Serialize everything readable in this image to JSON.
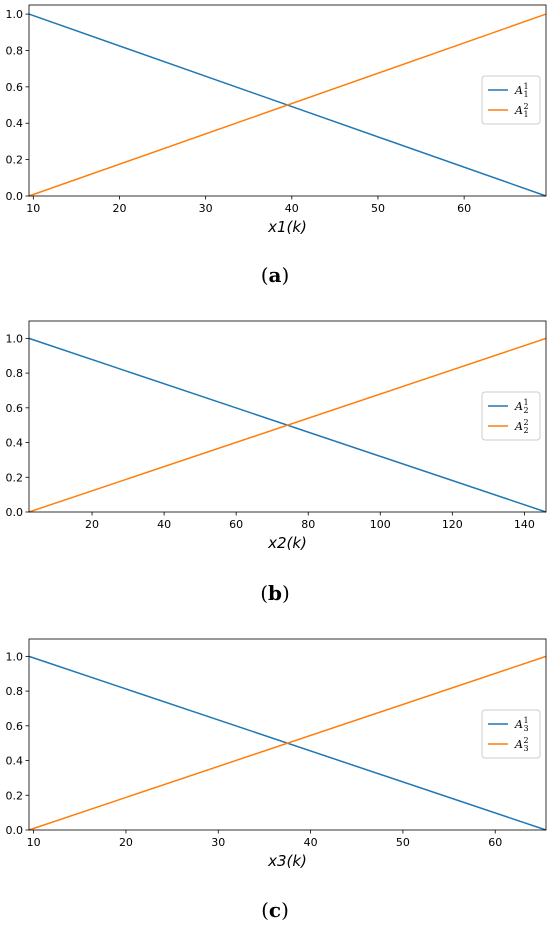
{
  "chart_data": [
    {
      "type": "line",
      "xlabel_main": "x1",
      "xlabel_arg": "k",
      "xlim": [
        9.5,
        69.5
      ],
      "ylim": [
        0.0,
        1.05
      ],
      "xticks": [
        10,
        20,
        30,
        40,
        50,
        60
      ],
      "yticks": [
        "0.0",
        "0.2",
        "0.4",
        "0.6",
        "0.8",
        "1.0"
      ],
      "series": [
        {
          "name": "A11",
          "label_base": "A",
          "label_sub": "1",
          "label_sup": "1",
          "color": "#1f77b4",
          "x": [
            9.5,
            69.5
          ],
          "y": [
            1.0,
            0.0
          ]
        },
        {
          "name": "A12",
          "label_base": "A",
          "label_sub": "1",
          "label_sup": "2",
          "color": "#ff7f0e",
          "x": [
            9.5,
            69.5
          ],
          "y": [
            0.0,
            1.0
          ]
        }
      ],
      "grid": false,
      "legend": "right",
      "caption_letter": "a"
    },
    {
      "type": "line",
      "xlabel_main": "x2",
      "xlabel_arg": "k",
      "xlim": [
        2.5,
        146
      ],
      "ylim": [
        0.0,
        1.1
      ],
      "xticks": [
        20,
        40,
        60,
        80,
        100,
        120,
        140
      ],
      "yticks": [
        "0.0",
        "0.2",
        "0.4",
        "0.6",
        "0.8",
        "1.0"
      ],
      "series": [
        {
          "name": "A21",
          "label_base": "A",
          "label_sub": "2",
          "label_sup": "1",
          "color": "#1f77b4",
          "x": [
            2.5,
            146
          ],
          "y": [
            1.0,
            0.0
          ]
        },
        {
          "name": "A22",
          "label_base": "A",
          "label_sub": "2",
          "label_sup": "2",
          "color": "#ff7f0e",
          "x": [
            2.5,
            146
          ],
          "y": [
            0.0,
            1.0
          ]
        }
      ],
      "grid": false,
      "legend": "right",
      "caption_letter": "b"
    },
    {
      "type": "line",
      "xlabel_main": "x3",
      "xlabel_arg": "k",
      "xlim": [
        9.5,
        65.5
      ],
      "ylim": [
        0.0,
        1.1
      ],
      "xticks": [
        10,
        20,
        30,
        40,
        50,
        60
      ],
      "yticks": [
        "0.0",
        "0.2",
        "0.4",
        "0.6",
        "0.8",
        "1.0"
      ],
      "series": [
        {
          "name": "A31",
          "label_base": "A",
          "label_sub": "3",
          "label_sup": "1",
          "color": "#1f77b4",
          "x": [
            9.5,
            65.5
          ],
          "y": [
            1.0,
            0.0
          ]
        },
        {
          "name": "A32",
          "label_base": "A",
          "label_sub": "3",
          "label_sup": "2",
          "color": "#ff7f0e",
          "x": [
            9.5,
            65.5
          ],
          "y": [
            0.0,
            1.0
          ]
        }
      ],
      "grid": false,
      "legend": "right",
      "caption_letter": "c"
    }
  ]
}
